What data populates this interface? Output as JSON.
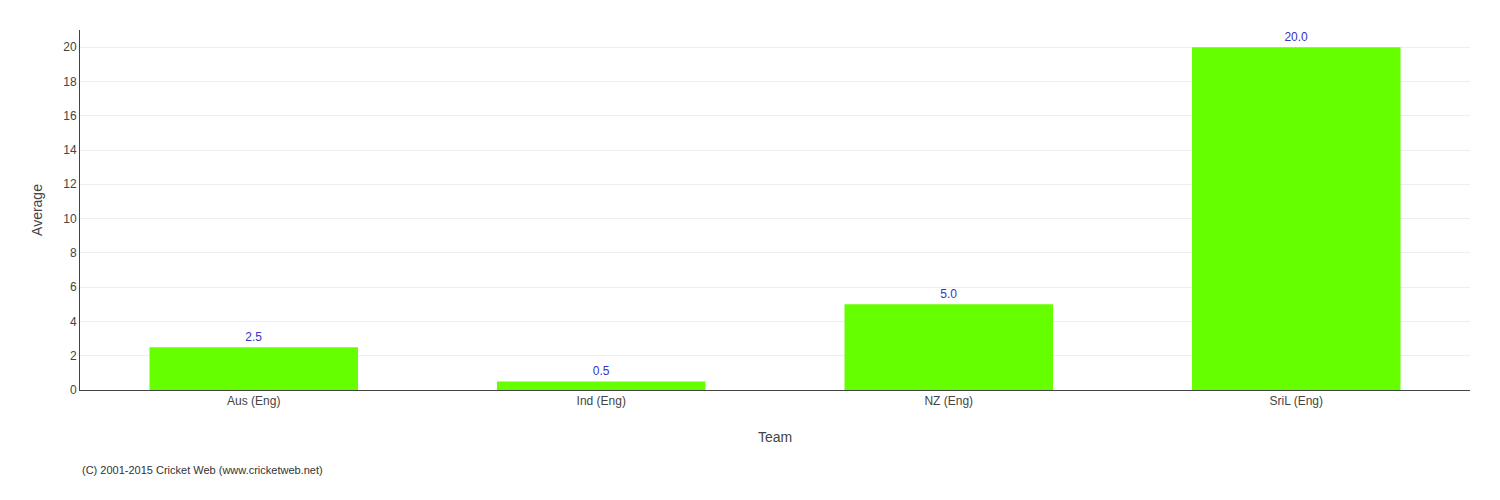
{
  "chart_data": {
    "type": "bar",
    "categories": [
      "Aus (Eng)",
      "Ind (Eng)",
      "NZ (Eng)",
      "SriL (Eng)"
    ],
    "values": [
      2.5,
      0.5,
      5.0,
      20.0
    ],
    "value_labels": [
      "2.5",
      "0.5",
      "5.0",
      "20.0"
    ],
    "data_labels": true,
    "color": "#66ff00",
    "xlabel": "Team",
    "ylabel": "Average",
    "ylim": [
      0,
      21
    ],
    "yticks": [
      0,
      2,
      4,
      6,
      8,
      10,
      12,
      14,
      16,
      18,
      20
    ],
    "grid": true,
    "annotations": [
      "(C) 2001-2015 Cricket Web (www.cricketweb.net)"
    ]
  }
}
